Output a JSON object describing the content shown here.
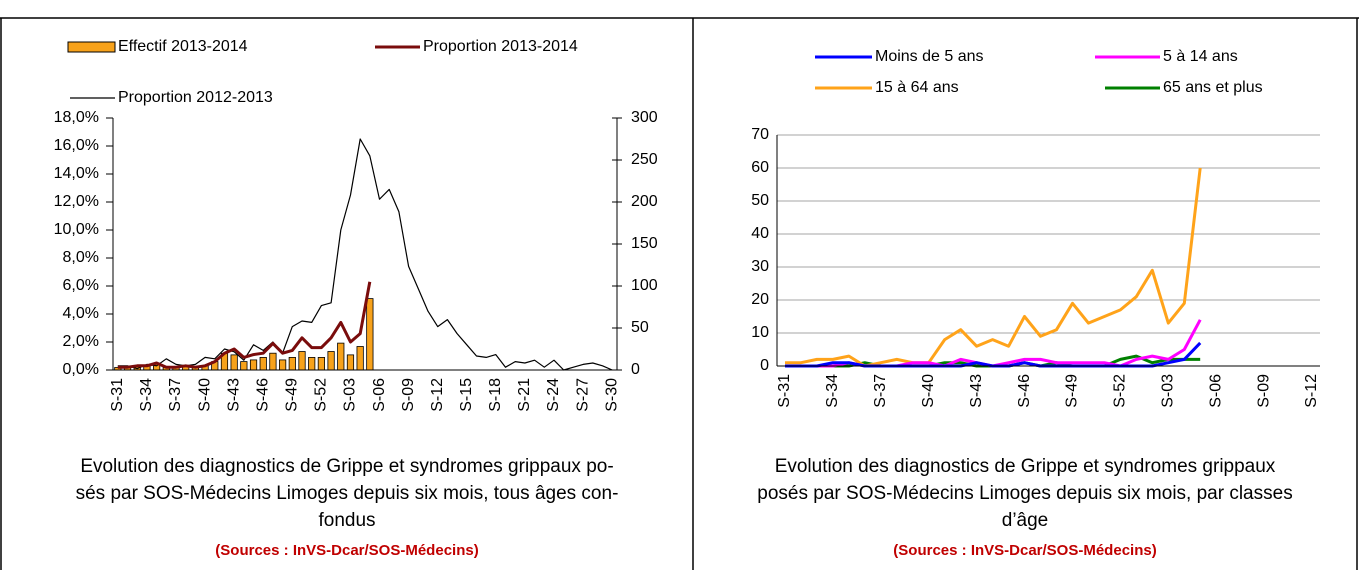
{
  "chart_data": [
    {
      "type": "combo",
      "categories": [
        "S-31",
        null,
        null,
        "S-34",
        null,
        null,
        "S-37",
        null,
        null,
        "S-40",
        null,
        null,
        "S-43",
        null,
        null,
        "S-46",
        null,
        null,
        "S-49",
        null,
        null,
        "S-52",
        null,
        null,
        "S-03",
        null,
        null,
        "S-06",
        null,
        null,
        "S-09",
        null,
        null,
        "S-12",
        null,
        null,
        "S-15",
        null,
        null,
        "S-18",
        null,
        null,
        "S-21",
        null,
        null,
        "S-24",
        null,
        null,
        "S-27",
        null,
        null,
        "S-30"
      ],
      "ylim": [
        0,
        18
      ],
      "yticks": [
        {
          "value": 0,
          "label": "0,0%"
        },
        {
          "value": 2,
          "label": "2,0%"
        },
        {
          "value": 4,
          "label": "4,0%"
        },
        {
          "value": 6,
          "label": "6,0%"
        },
        {
          "value": 8,
          "label": "8,0%"
        },
        {
          "value": 10,
          "label": "10,0%"
        },
        {
          "value": 12,
          "label": "12,0%"
        },
        {
          "value": 14,
          "label": "14,0%"
        },
        {
          "value": 16,
          "label": "16,0%"
        },
        {
          "value": 18,
          "label": "18,0%"
        }
      ],
      "y2lim": [
        0,
        300
      ],
      "y2ticks": [
        0,
        50,
        100,
        150,
        200,
        250,
        300
      ],
      "series": [
        {
          "name": "Effectif 2013-2014",
          "type": "bar",
          "axis": "y2",
          "color": "#f7a21b",
          "values": [
            3,
            3,
            5,
            5,
            8,
            3,
            3,
            5,
            3,
            5,
            10,
            20,
            18,
            10,
            12,
            15,
            20,
            12,
            15,
            22,
            15,
            15,
            22,
            32,
            18,
            28,
            85,
            null,
            null,
            null,
            null,
            null,
            null,
            null,
            null,
            null,
            null,
            null,
            null,
            null,
            null,
            null,
            null,
            null,
            null,
            null,
            null,
            null,
            null,
            null,
            null,
            null
          ]
        },
        {
          "name": "Proportion 2013-2014",
          "type": "line",
          "color": "#7a0c0c",
          "values": [
            0.2,
            0.2,
            0.3,
            0.3,
            0.5,
            0.2,
            0.2,
            0.3,
            0.2,
            0.3,
            0.6,
            1.2,
            1.5,
            0.9,
            1.1,
            1.2,
            1.9,
            1.2,
            1.4,
            2.3,
            1.6,
            1.6,
            2.3,
            3.4,
            2.0,
            2.6,
            6.3,
            null,
            null,
            null,
            null,
            null,
            null,
            null,
            null,
            null,
            null,
            null,
            null,
            null,
            null,
            null,
            null,
            null,
            null,
            null,
            null,
            null,
            null,
            null,
            null,
            null
          ]
        },
        {
          "name": "Proportion 2012-2013",
          "type": "line",
          "color": "#000000",
          "values": [
            0.3,
            0.3,
            0.1,
            0.4,
            0.3,
            0.8,
            0.4,
            0.3,
            0.4,
            0.9,
            0.8,
            1.5,
            1.3,
            0.7,
            1.8,
            1.4,
            2.0,
            1.2,
            3.1,
            3.5,
            3.4,
            4.6,
            4.8,
            10.0,
            12.5,
            16.5,
            15.3,
            12.2,
            12.9,
            11.3,
            7.4,
            5.8,
            4.2,
            3.1,
            3.6,
            2.6,
            1.8,
            1.0,
            0.9,
            1.1,
            0.2,
            0.6,
            0.5,
            0.7,
            0.2,
            0.7,
            0.0,
            0.2,
            0.4,
            0.5,
            0.3,
            0.0
          ]
        }
      ],
      "caption_lines": [
        "Evolution des diagnostics de Grippe et syndromes grippaux  po-",
        "sés par SOS-Médecins Limoges depuis six mois, tous âges con-",
        "fondus"
      ],
      "source": "(Sources : InVS-Dcar/SOS-Médecins)"
    },
    {
      "type": "line",
      "categories": [
        "S-31",
        null,
        null,
        "S-34",
        null,
        null,
        "S-37",
        null,
        null,
        "S-40",
        null,
        null,
        "S-43",
        null,
        null,
        "S-46",
        null,
        null,
        "S-49",
        null,
        null,
        "S-52",
        null,
        null,
        "S-03",
        null,
        null,
        "S-06",
        null,
        null,
        "S-09",
        null,
        null,
        "S-12"
      ],
      "ylim": [
        0,
        70
      ],
      "yticks": [
        0,
        10,
        20,
        30,
        40,
        50,
        60,
        70
      ],
      "grid": true,
      "series": [
        {
          "name": "Moins de 5 ans",
          "color": "#0000ff",
          "values": [
            0,
            0,
            0,
            1,
            1,
            0,
            0,
            0,
            0,
            0,
            0,
            0,
            1,
            0,
            0,
            1,
            0,
            0,
            0,
            0,
            0,
            0,
            0,
            0,
            1,
            2,
            7,
            null,
            null,
            null,
            null,
            null,
            null,
            null
          ]
        },
        {
          "name": "5 à 14 ans",
          "color": "#ff00ff",
          "values": [
            0,
            0,
            0,
            0,
            1,
            0,
            0,
            0,
            1,
            1,
            0,
            2,
            1,
            0,
            1,
            2,
            2,
            1,
            1,
            1,
            1,
            0,
            2,
            3,
            2,
            5,
            14,
            null,
            null,
            null,
            null,
            null,
            null,
            null
          ]
        },
        {
          "name": "15 à 64 ans",
          "color": "#ffa31a",
          "values": [
            1,
            1,
            2,
            2,
            3,
            0,
            1,
            2,
            1,
            1,
            8,
            11,
            6,
            8,
            6,
            15,
            9,
            11,
            19,
            13,
            15,
            17,
            21,
            29,
            13,
            19,
            60,
            null,
            null,
            null,
            null,
            null,
            null,
            null
          ]
        },
        {
          "name": "65 ans et plus",
          "color": "#008000",
          "values": [
            0,
            0,
            0,
            0,
            0,
            1,
            0,
            0,
            0,
            0,
            1,
            1,
            0,
            0,
            0,
            1,
            0,
            1,
            0,
            0,
            0,
            2,
            3,
            1,
            2,
            2,
            2,
            null,
            null,
            null,
            null,
            null,
            null,
            null
          ]
        }
      ],
      "caption_lines": [
        "Evolution des diagnostics de Grippe et syndromes grippaux",
        "posés par SOS-Médecins Limoges depuis six mois, par classes",
        "d’âge"
      ],
      "source": "(Sources : InVS-Dcar/SOS-Médecins)"
    }
  ]
}
